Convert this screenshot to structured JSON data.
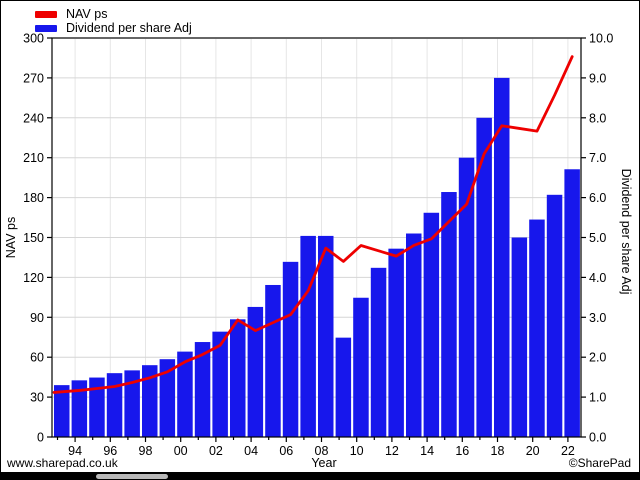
{
  "chart_data": {
    "type": "bar+line",
    "title": "",
    "categories": [
      "1993",
      "1994",
      "1995",
      "1996",
      "1997",
      "1998",
      "1999",
      "2000",
      "2001",
      "2002",
      "2003",
      "2004",
      "2005",
      "2006",
      "2007",
      "2008",
      "2009",
      "2010",
      "2011",
      "2012",
      "2013",
      "2014",
      "2015",
      "2016",
      "2017",
      "2018",
      "2019",
      "2020",
      "2021",
      "2022"
    ],
    "x_tick_labels": [
      "94",
      "96",
      "98",
      "00",
      "02",
      "04",
      "06",
      "08",
      "10",
      "12",
      "14",
      "16",
      "18",
      "20",
      "22"
    ],
    "series": [
      {
        "name": "NAV ps",
        "type": "line",
        "axis": "left",
        "color": "#ee0000",
        "values": [
          33.5,
          35,
          36.5,
          38,
          41,
          44.5,
          49,
          56.5,
          62,
          69,
          88,
          80,
          86,
          92,
          110,
          142,
          132,
          144,
          140,
          136,
          144,
          149,
          162,
          175,
          213,
          234,
          232,
          230,
          257,
          286
        ]
      },
      {
        "name": "Dividend per share Adj",
        "type": "bar",
        "axis": "right",
        "color": "#1717ec",
        "values": [
          1.3,
          1.42,
          1.49,
          1.6,
          1.67,
          1.8,
          1.95,
          2.14,
          2.38,
          2.64,
          2.95,
          3.26,
          3.81,
          4.39,
          5.04,
          5.04,
          2.49,
          3.49,
          4.24,
          4.72,
          5.1,
          5.62,
          6.14,
          7.0,
          8.0,
          9.0,
          5.0,
          5.45,
          6.07,
          6.71
        ]
      }
    ],
    "left_axis": {
      "label": "NAV ps",
      "min": 0,
      "max": 300,
      "step": 30,
      "tick_labels": [
        "0",
        "30",
        "60",
        "90",
        "120",
        "150",
        "180",
        "210",
        "240",
        "270",
        "300"
      ]
    },
    "right_axis": {
      "label": "Dividend per share Adj",
      "min": 0,
      "max": 10,
      "step": 1,
      "tick_labels": [
        "0.0",
        "1.0",
        "2.0",
        "3.0",
        "4.0",
        "5.0",
        "6.0",
        "7.0",
        "8.0",
        "9.0",
        "10.0"
      ]
    },
    "x_axis": {
      "label": "Year"
    },
    "grid": true,
    "legend_position": "top-left"
  },
  "footer": {
    "left": "www.sharepad.co.uk",
    "right": "©SharePad"
  },
  "colors": {
    "nav_line": "#ee0000",
    "dividend_bar": "#1717ec",
    "h_gridline": "#d6d6d6",
    "v_gridline": "#e6e6e6",
    "frame": "#000000",
    "background": "#ffffff",
    "bottom_strip": "#000000",
    "scroll_handle": "#b9b9b9"
  }
}
